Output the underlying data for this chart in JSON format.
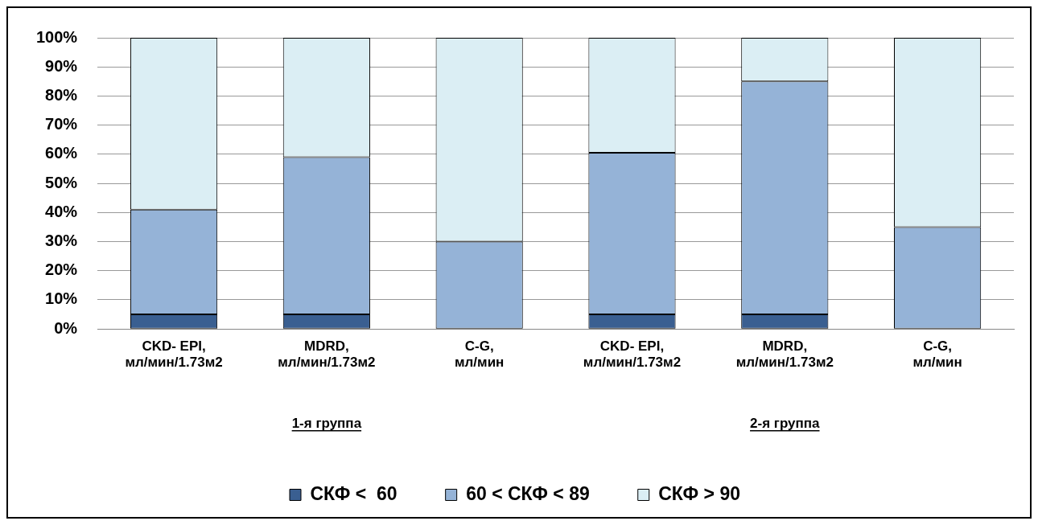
{
  "chart_data": {
    "type": "bar",
    "stacked": true,
    "categories": [
      "CKD- EPI,\nмл/мин/1.73м2",
      "MDRD,\nмл/мин/1.73м2",
      "C-G,\nмл/мин",
      "CKD- EPI,\nмл/мин/1.73м2",
      "MDRD,\nмл/мин/1.73м2",
      "C-G,\nмл/мин"
    ],
    "series": [
      {
        "name": "СКФ <  60",
        "color": "#3a5f91",
        "values": [
          5,
          5,
          0,
          5,
          5,
          0
        ]
      },
      {
        "name": "60 < СКФ < 89",
        "color": "#95b3d7",
        "values": [
          36,
          54,
          30,
          55.5,
          80,
          35
        ]
      },
      {
        "name": "СКФ > 90",
        "color": "#dbeef4",
        "values": [
          59,
          41,
          70,
          39.5,
          15,
          65
        ]
      }
    ],
    "ylim": [
      0,
      100
    ],
    "yticks": [
      {
        "value": 0,
        "label": "0%"
      },
      {
        "value": 10,
        "label": "10%"
      },
      {
        "value": 20,
        "label": "20%"
      },
      {
        "value": 30,
        "label": "30%"
      },
      {
        "value": 40,
        "label": "40%"
      },
      {
        "value": 50,
        "label": "50%"
      },
      {
        "value": 60,
        "label": "60%"
      },
      {
        "value": 70,
        "label": "70%"
      },
      {
        "value": 80,
        "label": "80%"
      },
      {
        "value": 90,
        "label": "90%"
      },
      {
        "value": 100,
        "label": "100%"
      }
    ],
    "grid": "y",
    "legend": "bottom",
    "annotations": [
      "1-я группа",
      "2-я группа"
    ]
  }
}
